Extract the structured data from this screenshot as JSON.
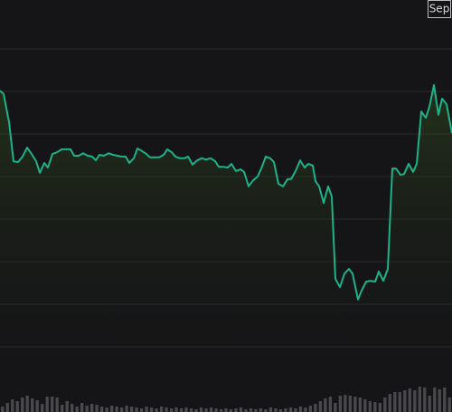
{
  "chart_data": {
    "type": "line",
    "annotation": "Sep",
    "color": "#1db38a",
    "background": "#151417",
    "grid": true,
    "grid_color": "#2c2b2f",
    "ylim": [
      1,
      9
    ],
    "grid_lines": [
      2,
      3,
      4,
      5,
      6,
      7,
      8,
      9
    ],
    "xlim": [
      0,
      500
    ],
    "x": [
      0,
      4,
      10,
      15,
      20,
      25,
      30,
      35,
      40,
      44,
      49,
      53,
      58,
      63,
      68,
      73,
      78,
      82,
      87,
      92,
      97,
      102,
      106,
      110,
      115,
      120,
      125,
      130,
      134,
      139,
      143,
      148,
      152,
      157,
      162,
      166,
      171,
      176,
      181,
      185,
      190,
      194,
      199,
      204,
      208,
      213,
      218,
      223,
      228,
      233,
      238,
      242,
      247,
      252,
      256,
      261,
      266,
      270,
      275,
      280,
      285,
      289,
      294,
      299,
      303,
      308,
      313,
      318,
      322,
      327,
      332,
      337,
      341,
      346,
      349,
      353,
      358,
      363,
      367,
      371,
      376,
      381,
      386,
      390,
      396,
      400,
      405,
      410,
      415,
      419,
      424,
      429,
      434,
      438,
      443,
      447,
      452,
      457,
      461,
      466,
      471,
      475,
      480,
      485,
      489,
      494,
      500
    ],
    "values": [
      8.02,
      7.94,
      7.28,
      6.36,
      6.34,
      6.47,
      6.68,
      6.53,
      6.36,
      6.09,
      6.32,
      6.21,
      6.53,
      6.57,
      6.64,
      6.64,
      6.64,
      6.49,
      6.49,
      6.55,
      6.49,
      6.47,
      6.38,
      6.51,
      6.49,
      6.55,
      6.51,
      6.49,
      6.47,
      6.47,
      6.32,
      6.43,
      6.66,
      6.6,
      6.53,
      6.45,
      6.45,
      6.45,
      6.51,
      6.64,
      6.57,
      6.47,
      6.43,
      6.43,
      6.47,
      6.28,
      6.38,
      6.43,
      6.4,
      6.43,
      6.36,
      6.23,
      6.23,
      6.21,
      6.3,
      6.13,
      6.17,
      6.11,
      5.77,
      5.91,
      6.0,
      6.19,
      6.47,
      6.43,
      6.34,
      5.83,
      5.77,
      5.94,
      5.94,
      6.13,
      6.38,
      6.21,
      6.3,
      6.26,
      5.89,
      5.77,
      5.38,
      5.77,
      5.53,
      3.6,
      3.4,
      3.72,
      3.83,
      3.72,
      3.11,
      3.32,
      3.53,
      3.55,
      3.53,
      3.77,
      3.55,
      3.83,
      6.19,
      6.19,
      6.04,
      6.06,
      6.3,
      6.11,
      6.3,
      7.53,
      7.38,
      7.64,
      8.15,
      7.45,
      7.83,
      7.7,
      7.02
    ],
    "volume": {
      "color": "#4a494d",
      "vlim": [
        0,
        30
      ],
      "values": [
        6,
        10,
        14,
        12,
        16,
        18,
        15,
        13,
        9,
        17,
        17,
        16,
        8,
        12,
        9,
        6,
        10,
        7,
        9,
        8,
        6,
        5,
        7,
        6,
        5,
        7,
        6,
        5,
        4,
        6,
        5,
        4,
        6,
        5,
        4,
        5,
        4,
        5,
        4,
        3,
        5,
        4,
        5,
        4,
        3,
        4,
        3,
        4,
        5,
        3,
        4,
        3,
        4,
        3,
        5,
        4,
        3,
        4,
        5,
        4,
        6,
        5,
        7,
        9,
        12,
        15,
        17,
        10,
        18,
        19,
        18,
        17,
        16,
        14,
        12,
        11,
        10,
        16,
        20,
        22,
        22,
        24,
        26,
        24,
        28,
        27,
        18,
        27,
        25,
        27,
        16
      ]
    }
  }
}
